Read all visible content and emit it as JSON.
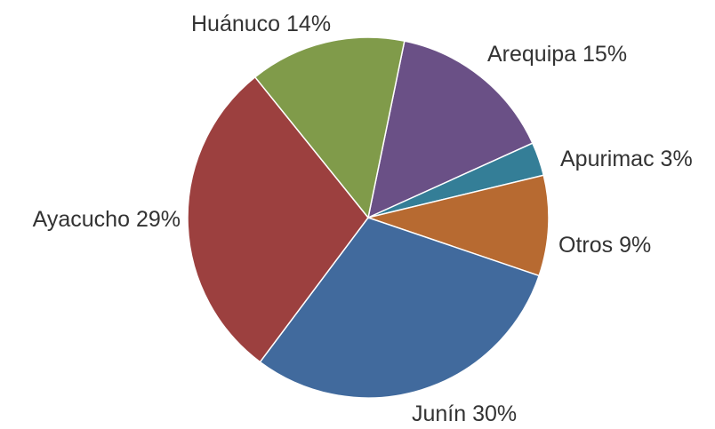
{
  "chart_data": {
    "type": "pie",
    "categories": [
      "Arequipa",
      "Apurimac",
      "Otros",
      "Junín",
      "Ayacucho",
      "Huánuco"
    ],
    "values": [
      15,
      3,
      9,
      30,
      29,
      14
    ],
    "value_labels": [
      "15%",
      "3%",
      "9%",
      "30%",
      "29%",
      "14%"
    ],
    "colors": [
      "#6a5086",
      "#347e97",
      "#b76a31",
      "#416a9d",
      "#9c403f",
      "#809b4a"
    ]
  }
}
